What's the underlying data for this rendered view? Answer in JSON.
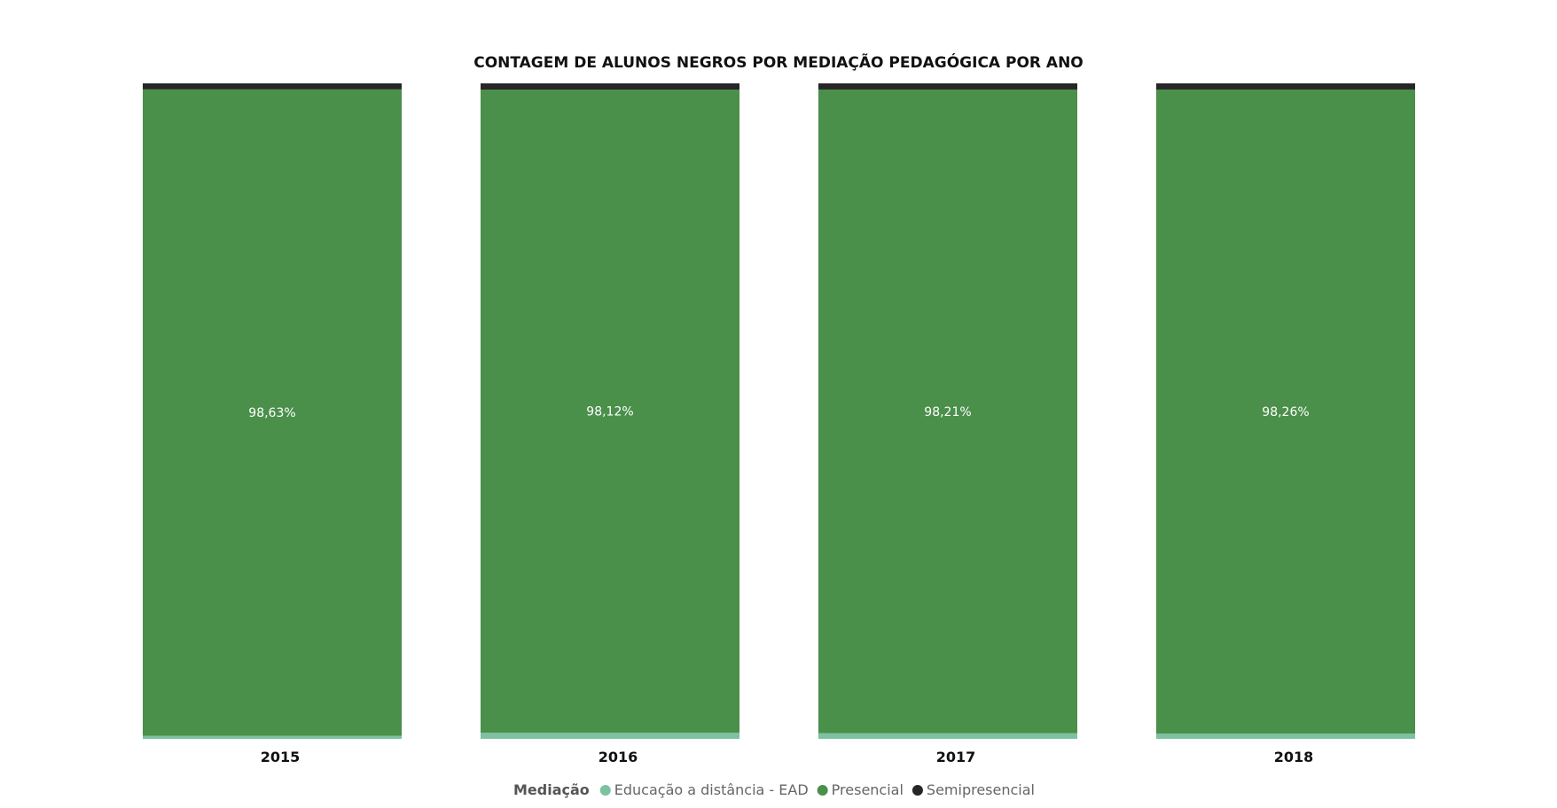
{
  "chart_data": {
    "type": "bar",
    "stacked": true,
    "normalized": true,
    "title": "CONTAGEM DE ALUNOS NEGROS POR MEDIAÇÃO PEDAGÓGICA POR ANO",
    "categories": [
      "2015",
      "2016",
      "2017",
      "2018"
    ],
    "ylim": [
      0,
      100
    ],
    "grid": false,
    "legend": {
      "title": "Mediação",
      "position": "bottom"
    },
    "series": [
      {
        "name": "Educação a distância - EAD",
        "color": "#7cc1a0",
        "values": [
          0.45,
          0.92,
          0.85,
          0.8
        ]
      },
      {
        "name": "Presencial",
        "color": "#4a8f4a",
        "values": [
          98.63,
          98.12,
          98.21,
          98.26
        ],
        "labels": [
          "98,63%",
          "98,12%",
          "98,21%",
          "98,26%"
        ]
      },
      {
        "name": "Semipresencial",
        "color": "#262626",
        "values": [
          0.92,
          0.96,
          0.94,
          0.94
        ]
      }
    ]
  }
}
